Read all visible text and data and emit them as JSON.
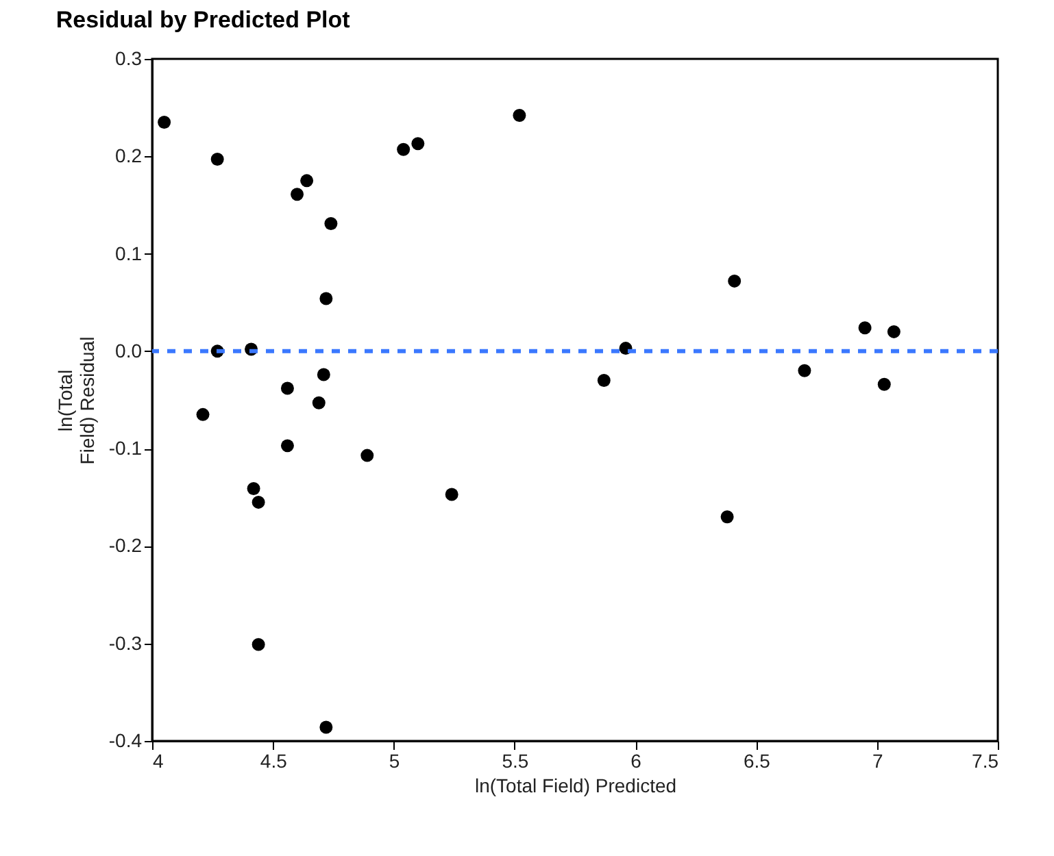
{
  "chart_data": {
    "type": "scatter",
    "title": "Residual by Predicted Plot",
    "xlabel": "ln(Total Field) Predicted",
    "ylabel": "ln(Total Field) Residual",
    "x": [
      4.05,
      4.27,
      4.27,
      4.21,
      4.41,
      4.42,
      4.44,
      4.44,
      4.56,
      4.56,
      4.6,
      4.64,
      4.74,
      4.72,
      4.71,
      4.69,
      4.72,
      4.89,
      5.04,
      5.1,
      5.24,
      5.52,
      5.87,
      5.96,
      6.38,
      6.41,
      6.7,
      6.95,
      7.03,
      7.07
    ],
    "series": [
      {
        "color": "#000000",
        "values": [
          0.235,
          0.197,
          0.0,
          -0.065,
          0.002,
          -0.141,
          -0.155,
          -0.301,
          -0.038,
          -0.097,
          0.161,
          0.175,
          0.131,
          0.054,
          -0.024,
          -0.053,
          -0.386,
          -0.107,
          0.207,
          0.213,
          -0.147,
          0.242,
          -0.03,
          0.003,
          -0.17,
          0.072,
          -0.02,
          0.024,
          -0.034,
          0.02
        ]
      }
    ],
    "xlim": [
      4,
      7.5
    ],
    "xticks": [
      4,
      4.5,
      5,
      5.5,
      6,
      6.5,
      7,
      7.5
    ],
    "ylim": [
      -0.4,
      0.3
    ],
    "yticks": [
      -0.4,
      -0.3,
      -0.2,
      -0.1,
      {
        "value": 0,
        "label": "0.0"
      },
      0.1,
      0.2,
      0.3
    ],
    "ref_lines": [
      {
        "axis": "y",
        "value": 0,
        "color": "#3b78ff",
        "line_style": "dashed"
      }
    ],
    "marker": "circle",
    "grid": false
  }
}
